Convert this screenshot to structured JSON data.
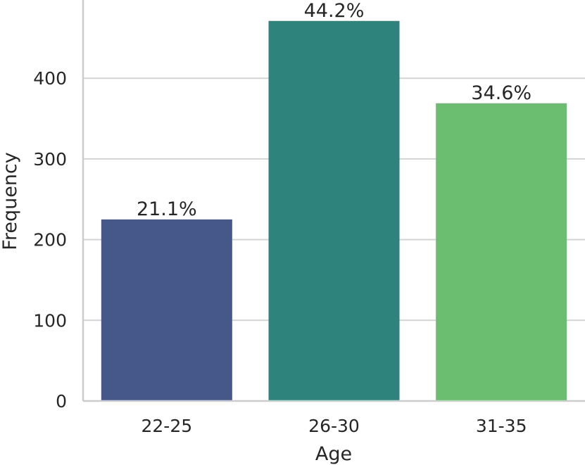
{
  "chart_data": {
    "type": "bar",
    "title": "",
    "xlabel": "Age",
    "ylabel": "Frequency",
    "categories": [
      "22-25",
      "26-30",
      "31-35"
    ],
    "values": [
      225,
      471,
      369
    ],
    "data_labels": [
      "21.1%",
      "44.2%",
      "34.6%"
    ],
    "colors": [
      "#46578a",
      "#2e837d",
      "#6bbd6f"
    ],
    "ylim": [
      0,
      495
    ],
    "yticks": [
      0,
      100,
      200,
      300,
      400
    ],
    "grid": "horizontal",
    "legend": "none"
  }
}
